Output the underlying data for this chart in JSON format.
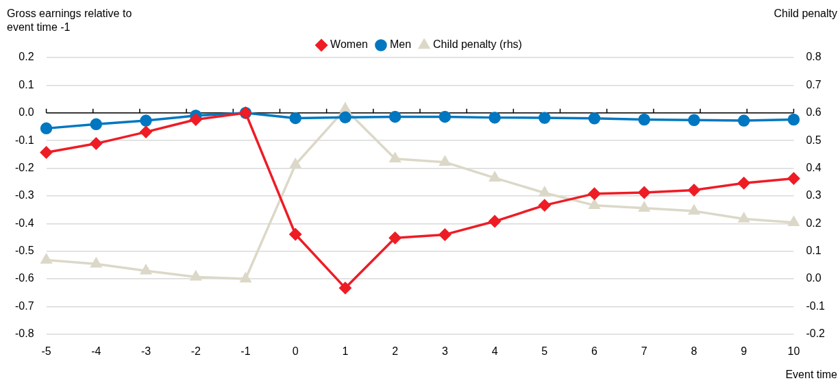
{
  "chart_data": {
    "type": "line",
    "ylabel": "Gross earnings relative to event time -1",
    "y2label": "Child penalty",
    "xlabel": "Event time",
    "categories": [
      "-5",
      "-4",
      "-3",
      "-2",
      "-1",
      "0",
      "1",
      "2",
      "3",
      "4",
      "5",
      "6",
      "7",
      "8",
      "9",
      "10"
    ],
    "series": [
      {
        "name": "Men",
        "color": "#0077c0",
        "marker": "circle",
        "values": [
          -0.056,
          -0.041,
          -0.028,
          -0.01,
          0,
          -0.019,
          -0.016,
          -0.014,
          -0.014,
          -0.017,
          -0.018,
          -0.02,
          -0.024,
          -0.026,
          -0.028,
          -0.024
        ]
      },
      {
        "name": "Women",
        "color": "#ee1c25",
        "marker": "diamond",
        "values": [
          -0.143,
          -0.111,
          -0.069,
          -0.024,
          0,
          -0.439,
          -0.633,
          -0.452,
          -0.44,
          -0.392,
          -0.334,
          -0.292,
          -0.288,
          -0.279,
          -0.254,
          -0.237
        ]
      },
      {
        "name": "Child penalty (rhs)",
        "color": "#dcd8c8",
        "marker": "triangle",
        "axis": "y2",
        "values": [
          0.068,
          0.054,
          0.029,
          0.007,
          0,
          0.413,
          0.614,
          0.434,
          0.422,
          0.365,
          0.311,
          0.266,
          0.256,
          0.245,
          0.217,
          0.204
        ]
      }
    ],
    "ylim": [
      -0.8,
      0.2
    ],
    "yticks": [
      -0.8,
      -0.7,
      -0.6,
      -0.5,
      -0.4,
      -0.3,
      -0.2,
      -0.1,
      {
        "value": 0,
        "label": "0.0"
      },
      0.1,
      0.2
    ],
    "y2lim": [
      -0.2,
      0.8
    ],
    "y2ticks": [
      -0.2,
      -0.1,
      {
        "value": 0,
        "label": "0.0"
      },
      0.1,
      0.2,
      0.3,
      0.4,
      0.5,
      0.6,
      0.7,
      0.8
    ],
    "grid": "y",
    "legend": "top",
    "line_style": "solid"
  }
}
